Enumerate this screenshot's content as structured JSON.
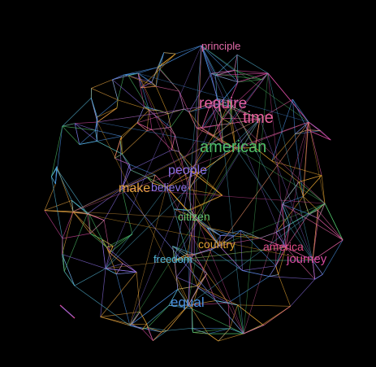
{
  "words": [
    {
      "text": "principle",
      "color": "#e26aa8"
    },
    {
      "text": "require",
      "color": "#e05fa0"
    },
    {
      "text": "time",
      "color": "#e6629b"
    },
    {
      "text": "american",
      "color": "#4fbf68"
    },
    {
      "text": "people",
      "color": "#8a6ee0"
    },
    {
      "text": "make",
      "color": "#e3a23f"
    },
    {
      "text": "believe",
      "color": "#8b74e6"
    },
    {
      "text": "citizen",
      "color": "#66c66f"
    },
    {
      "text": "country",
      "color": "#e0a030"
    },
    {
      "text": "america",
      "color": "#e34c86"
    },
    {
      "text": "journey",
      "color": "#d64aa0"
    },
    {
      "text": "freedom",
      "color": "#55b8d8"
    },
    {
      "text": "equal",
      "color": "#4a8fe0"
    }
  ],
  "edge_colors": [
    "#e05fa0",
    "#e3a23f",
    "#4fbf68",
    "#8a6ee0",
    "#55b8d8",
    "#4a8fe0",
    "#d64aa0",
    "#e0a030"
  ]
}
